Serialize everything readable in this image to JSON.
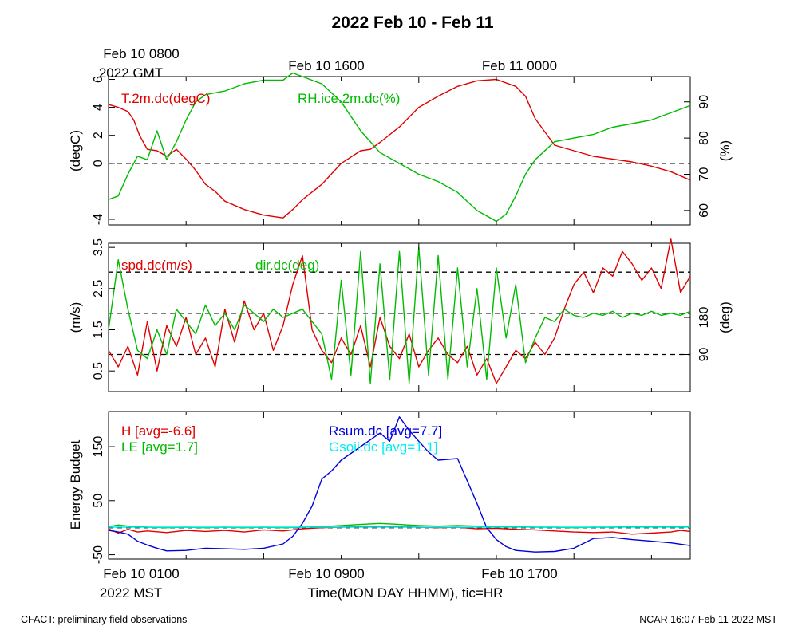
{
  "page": {
    "title": "2022 Feb 10 - Feb 11",
    "footer_left": "CFACT: preliminary field observations",
    "footer_right": "NCAR 16:07 Feb 11 2022 MST"
  },
  "top_axis": {
    "first_label_line1": "Feb 10 0800",
    "first_label_line2": "2022 GMT",
    "labels": [
      "Feb 10 1600",
      "Feb 11 0000"
    ]
  },
  "bottom_axis": {
    "first_label_line1": "Feb 10 0100",
    "first_label_line2": "2022 MST",
    "labels": [
      "Feb 10 0900",
      "Feb 10 1700"
    ],
    "xlabel": "Time(MON DAY HHMM), tic=HR"
  },
  "colors": {
    "red": "#e00000",
    "green": "#00bb00",
    "blue": "#0000dd",
    "cyan": "#00eeee"
  },
  "chart_data": [
    {
      "type": "line",
      "title": "",
      "xlabel": "",
      "x_unit": "hours since Feb 10 0100 MST",
      "xlim": [
        0,
        30
      ],
      "ylabel": "(degC)",
      "ylim": [
        -4.4,
        6.2
      ],
      "yticks": [
        -4,
        0,
        2,
        4,
        6
      ],
      "y2label": "(%)",
      "y2lim": [
        56,
        97
      ],
      "y2ticks": [
        60,
        70,
        80,
        90
      ],
      "reference_lines": [
        0
      ],
      "series": [
        {
          "name": "T.2m.dc(degC)",
          "color": "red",
          "axis": "left",
          "x": [
            0,
            0.5,
            1,
            1.3,
            1.6,
            2,
            2.5,
            3,
            3.5,
            4,
            4.5,
            5,
            5.5,
            6,
            7,
            8,
            9,
            9.5,
            10,
            11,
            12,
            13,
            13.5,
            14,
            15,
            16,
            17,
            18,
            19,
            20,
            21,
            21.5,
            22,
            23,
            24,
            25,
            26,
            27,
            28,
            29,
            30
          ],
          "y": [
            4.2,
            4.0,
            3.7,
            3.1,
            2.0,
            1.0,
            0.9,
            0.5,
            1.0,
            0.3,
            -0.5,
            -1.5,
            -2.0,
            -2.7,
            -3.3,
            -3.7,
            -3.9,
            -3.3,
            -2.6,
            -1.5,
            0.0,
            0.9,
            1.0,
            1.5,
            2.6,
            4.0,
            4.8,
            5.5,
            5.9,
            6.0,
            5.5,
            4.8,
            3.2,
            1.3,
            0.9,
            0.5,
            0.3,
            0.1,
            -0.2,
            -0.6,
            -1.2
          ]
        },
        {
          "name": "RH.ice.2m.dc(%)",
          "color": "green",
          "axis": "right",
          "x": [
            0,
            0.5,
            1,
            1.5,
            2,
            2.5,
            3,
            3.5,
            4,
            4.5,
            5,
            6,
            7,
            8,
            9,
            9.5,
            10,
            11,
            12,
            13,
            14,
            15,
            16,
            17,
            18,
            19,
            20,
            20.5,
            21,
            21.5,
            22,
            23,
            24,
            25,
            26,
            27,
            28,
            29,
            30
          ],
          "y": [
            63,
            64,
            70,
            75,
            74,
            82,
            74,
            79,
            85,
            90,
            92,
            93,
            95,
            96,
            96,
            98,
            97,
            95,
            90,
            82,
            76,
            73,
            70,
            68,
            65,
            60,
            57,
            59,
            64,
            70,
            74,
            79,
            80,
            81,
            83,
            84,
            85,
            87,
            89
          ]
        }
      ]
    },
    {
      "type": "line",
      "title": "",
      "xlabel": "",
      "x_unit": "hours since Feb 10 0100 MST",
      "xlim": [
        0,
        30
      ],
      "ylabel": "(m/s)",
      "ylim": [
        0.0,
        3.6
      ],
      "yticks": [
        0.5,
        1.5,
        2.5,
        3.5
      ],
      "y2label": "(deg)",
      "y2lim": [
        0,
        360
      ],
      "y2ticks": [
        90,
        180
      ],
      "reference_lines": [
        0.9,
        1.9,
        2.9
      ],
      "series": [
        {
          "name": "spd.dc(m/s)",
          "color": "red",
          "axis": "left",
          "x": [
            0,
            0.5,
            1,
            1.5,
            2,
            2.5,
            3,
            3.5,
            4,
            4.5,
            5,
            5.5,
            6,
            6.5,
            7,
            7.5,
            8,
            8.5,
            9,
            9.5,
            10,
            10.5,
            11,
            11.5,
            12,
            12.5,
            13,
            13.5,
            14,
            14.5,
            15,
            15.5,
            16,
            16.5,
            17,
            17.5,
            18,
            18.5,
            19,
            19.5,
            20,
            20.5,
            21,
            21.5,
            22,
            22.5,
            23,
            23.5,
            24,
            24.5,
            25,
            25.5,
            26,
            26.5,
            27,
            27.5,
            28,
            28.5,
            29,
            29.5,
            30
          ],
          "y": [
            1.0,
            0.6,
            1.1,
            0.4,
            1.7,
            0.5,
            1.6,
            1.1,
            1.8,
            0.9,
            1.3,
            0.6,
            2.0,
            1.2,
            2.2,
            1.5,
            1.9,
            1.0,
            1.6,
            2.6,
            3.3,
            1.5,
            1.0,
            0.7,
            1.3,
            0.9,
            1.6,
            0.6,
            1.8,
            1.1,
            0.8,
            1.4,
            0.6,
            1.0,
            1.3,
            0.9,
            0.7,
            1.1,
            0.4,
            0.8,
            0.2,
            0.6,
            1.0,
            0.8,
            1.2,
            0.9,
            1.3,
            2.0,
            2.6,
            2.9,
            2.4,
            3.0,
            2.8,
            3.4,
            3.1,
            2.7,
            3.0,
            2.5,
            3.7,
            2.4,
            2.8
          ]
        },
        {
          "name": "dir.dc(deg)",
          "color": "green",
          "axis": "right",
          "x": [
            0,
            0.5,
            1,
            1.5,
            2,
            2.5,
            3,
            3.5,
            4,
            4.5,
            5,
            5.5,
            6,
            6.5,
            7,
            7.5,
            8,
            8.5,
            9,
            9.5,
            10,
            10.5,
            11,
            11.5,
            12,
            12.5,
            13,
            13.5,
            14,
            14.5,
            15,
            15.5,
            16,
            16.5,
            17,
            17.5,
            18,
            18.5,
            19,
            19.5,
            20,
            20.5,
            21,
            21.5,
            22,
            22.5,
            23,
            23.5,
            24,
            24.5,
            25,
            25.5,
            26,
            26.5,
            27,
            27.5,
            28,
            28.5,
            29,
            29.5,
            30
          ],
          "y": [
            150,
            320,
            200,
            100,
            80,
            150,
            90,
            200,
            170,
            140,
            210,
            160,
            190,
            150,
            210,
            190,
            170,
            200,
            180,
            190,
            200,
            170,
            140,
            30,
            270,
            40,
            340,
            20,
            310,
            30,
            340,
            20,
            350,
            40,
            330,
            30,
            300,
            60,
            250,
            30,
            300,
            130,
            260,
            70,
            130,
            180,
            170,
            200,
            185,
            180,
            190,
            185,
            195,
            180,
            190,
            185,
            195,
            185,
            190,
            185,
            195
          ]
        }
      ]
    },
    {
      "type": "line",
      "title": "",
      "xlabel": "",
      "x_unit": "hours since Feb 10 0100 MST",
      "xlim": [
        0,
        30
      ],
      "ylabel": "Energy Budget",
      "ylim": [
        -58,
        215
      ],
      "yticks": [
        -50,
        50,
        150
      ],
      "reference_lines": [
        0
      ],
      "series": [
        {
          "name": "H [avg=-6.6]",
          "color": "red",
          "x": [
            0,
            0.5,
            1,
            1.5,
            2,
            3,
            4,
            5,
            6,
            7,
            8,
            9,
            10,
            11,
            12,
            13,
            14,
            15,
            16,
            17,
            18,
            19,
            20,
            21,
            22,
            23,
            24,
            25,
            26,
            27,
            28,
            29,
            29.5,
            30
          ],
          "y": [
            -2,
            -10,
            -3,
            -8,
            -6,
            -9,
            -5,
            -7,
            -5,
            -8,
            -4,
            -6,
            -2,
            0,
            1,
            2,
            3,
            2,
            1,
            0,
            1,
            -2,
            -1,
            -3,
            -4,
            -6,
            -8,
            -9,
            -8,
            -12,
            -10,
            -8,
            -5,
            -7
          ]
        },
        {
          "name": "LE [avg=1.7]",
          "color": "green",
          "x": [
            0,
            0.5,
            1,
            2,
            3,
            4,
            5,
            6,
            7,
            8,
            9,
            10,
            11,
            12,
            13,
            14,
            15,
            16,
            17,
            18,
            19,
            20,
            21,
            22,
            23,
            24,
            25,
            26,
            27,
            28,
            29,
            30
          ],
          "y": [
            2,
            5,
            3,
            1,
            0,
            1,
            0,
            1,
            0,
            1,
            0,
            1,
            2,
            4,
            6,
            8,
            6,
            4,
            3,
            4,
            3,
            2,
            2,
            1,
            1,
            0,
            1,
            1,
            2,
            2,
            2,
            2
          ]
        },
        {
          "name": "Rsum.dc [avg=7.7]",
          "color": "blue",
          "x": [
            0,
            0.5,
            1,
            1.5,
            2,
            2.5,
            3,
            4,
            5,
            6,
            7,
            8,
            9,
            9.5,
            10,
            10.5,
            11,
            11.5,
            12,
            13,
            14,
            14.5,
            15,
            15.5,
            16,
            16.5,
            17,
            18,
            19,
            19.5,
            20,
            20.5,
            21,
            22,
            23,
            24,
            25,
            26,
            27,
            28,
            29,
            30
          ],
          "y": [
            -5,
            -8,
            -12,
            -25,
            -32,
            -38,
            -43,
            -42,
            -38,
            -39,
            -40,
            -38,
            -30,
            -16,
            8,
            40,
            90,
            105,
            125,
            150,
            175,
            160,
            205,
            180,
            160,
            140,
            125,
            128,
            45,
            0,
            -22,
            -35,
            -42,
            -45,
            -44,
            -38,
            -20,
            -18,
            -22,
            -25,
            -28,
            -33
          ]
        },
        {
          "name": "Gsoil.dc [avg=1.1]",
          "color": "cyan",
          "x": [
            0,
            5,
            10,
            15,
            20,
            25,
            30
          ],
          "y": [
            1,
            1,
            1,
            1,
            1,
            1,
            1
          ]
        }
      ]
    }
  ]
}
